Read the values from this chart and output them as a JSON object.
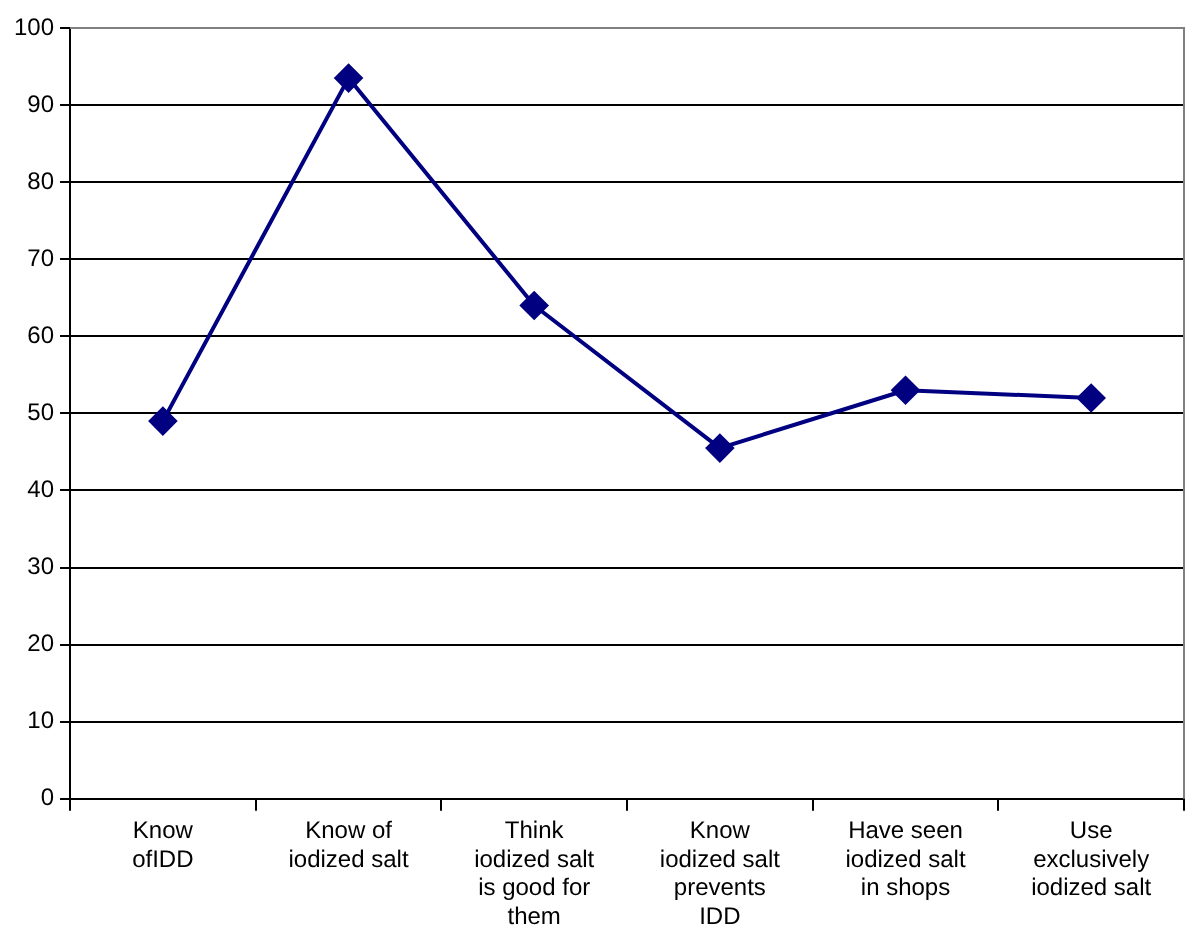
{
  "chart_data": {
    "type": "line",
    "categories": [
      "Know\nofIDD",
      "Know of\niodized salt",
      "Think\niodized salt\nis good for\nthem",
      "Know\niodized salt\nprevents\nIDD",
      "Have seen\niodized salt\nin shops",
      "Use\nexclusively\niodized salt"
    ],
    "series": [
      {
        "color": "#000080",
        "values": [
          49,
          93.5,
          64,
          45.5,
          53,
          52
        ]
      }
    ],
    "ylim": [
      0,
      100
    ],
    "yticks": [
      0,
      10,
      20,
      30,
      40,
      50,
      60,
      70,
      80,
      90,
      100
    ],
    "grid": "y",
    "legend": false,
    "marker": "diamond",
    "line_style": "solid"
  }
}
